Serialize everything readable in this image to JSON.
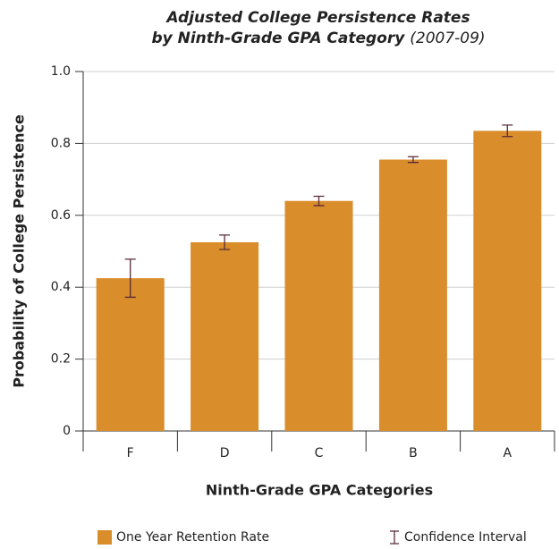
{
  "chart_data": {
    "type": "bar",
    "title": [
      "Adjusted College Persistence Rates",
      "by Ninth-Grade GPA Category"
    ],
    "subtitle": "(2007-09)",
    "x_label": "Ninth-Grade GPA Categories",
    "y_label": "Probability of College Persistence",
    "categories": [
      "F",
      "D",
      "C",
      "B",
      "A"
    ],
    "series": [
      {
        "name": "One Year Retention Rate",
        "color": "#d98d2b",
        "values": [
          0.425,
          0.525,
          0.64,
          0.755,
          0.835
        ],
        "errors": [
          0.053,
          0.02,
          0.013,
          0.008,
          0.016
        ],
        "error_name": "Confidence Interval",
        "error_color": "#5a2a3a"
      }
    ],
    "ylim": [
      0,
      1
    ],
    "yticks": [
      0,
      0.2,
      0.4,
      0.6,
      0.8,
      {
        "value": 1,
        "label": "1.0"
      }
    ],
    "grid": true,
    "legend": "bottom"
  }
}
